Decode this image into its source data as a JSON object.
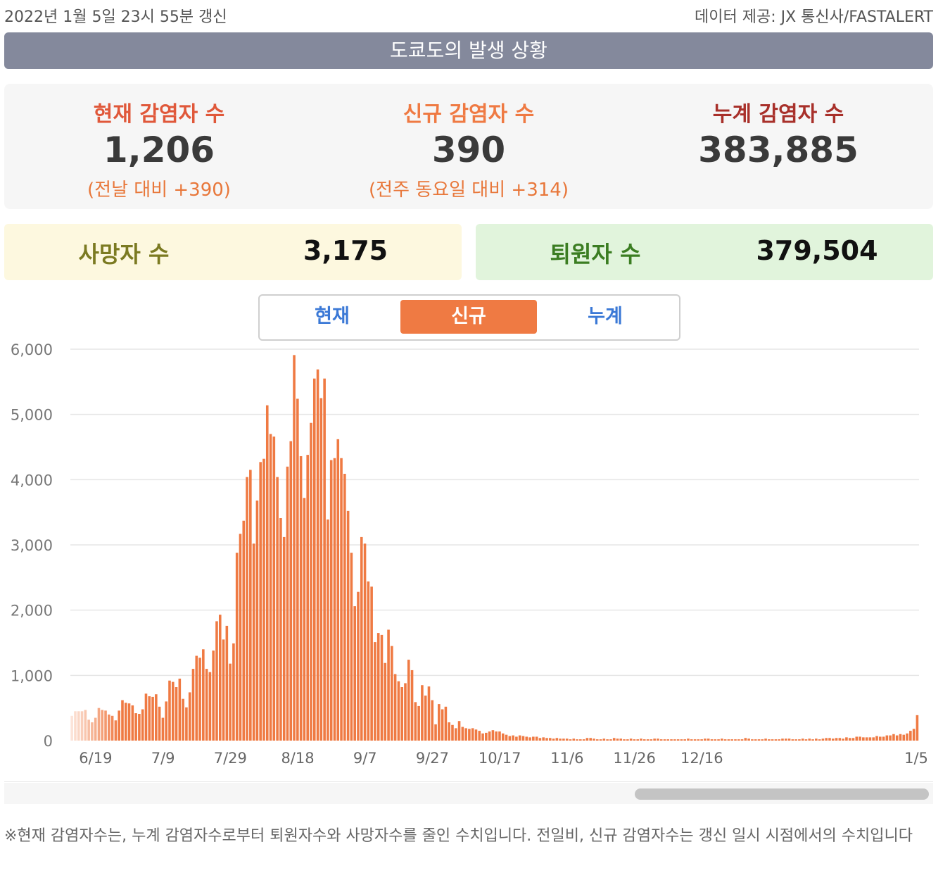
{
  "header": {
    "updated": "2022년 1월 5일 23시 55분 갱신",
    "source": "데이터 제공: JX 통신사/FASTALERT",
    "title": "도쿄도의 발생 상황"
  },
  "stats": {
    "current": {
      "label": "현재 감염자 수",
      "value": "1,206",
      "sub": "(전날 대비 +390)"
    },
    "new": {
      "label": "신규 감염자 수",
      "value": "390",
      "sub": "(전주 동요일 대비 +314)"
    },
    "cumulative": {
      "label": "누계 감염자 수",
      "value": "383,885"
    }
  },
  "deaths": {
    "label": "사망자 수",
    "value": "3,175"
  },
  "recovered": {
    "label": "퇴원자 수",
    "value": "379,504"
  },
  "tabs": [
    {
      "label": "현재"
    },
    {
      "label": "신규"
    },
    {
      "label": "누계"
    }
  ],
  "footnote": "※현재 감염자수는, 누계 감염자수로부터 퇴원자수와 사망자수를 줄인 수치입니다. 전일비, 신규 감염자수는 갱신 일시 시점에서의 수치입니다",
  "colors": {
    "bar": "#ef7a43",
    "current_label": "#e0583a",
    "new_label": "#ef7a43",
    "cumulative_label": "#a8302a",
    "deaths_bg": "#fdf8df",
    "deaths_label": "#7b7a21",
    "recovered_bg": "#e1f4dc",
    "recovered_label": "#3b7d22"
  },
  "chart_data": {
    "type": "bar",
    "title": "신규 감염자 수",
    "ylim": [
      0,
      6000
    ],
    "yticks": [
      "0",
      "1,000",
      "2,000",
      "3,000",
      "4,000",
      "5,000",
      "6,000"
    ],
    "xticks": [
      "6/19",
      "7/9",
      "7/29",
      "8/18",
      "9/7",
      "9/27",
      "10/17",
      "11/6",
      "11/26",
      "12/16",
      "1/5"
    ],
    "grid": true,
    "start_date": "6/12",
    "end_date": "1/5",
    "values": [
      380,
      450,
      450,
      450,
      470,
      320,
      280,
      350,
      500,
      470,
      460,
      400,
      380,
      310,
      460,
      620,
      580,
      570,
      540,
      420,
      410,
      480,
      720,
      680,
      670,
      710,
      520,
      350,
      600,
      920,
      900,
      820,
      950,
      640,
      510,
      740,
      1100,
      1300,
      1270,
      1400,
      1100,
      1050,
      1380,
      1830,
      1930,
      1550,
      1760,
      1180,
      1490,
      2880,
      3170,
      3370,
      4040,
      4150,
      3020,
      3680,
      4270,
      4320,
      5140,
      4700,
      4660,
      4040,
      3410,
      3120,
      4200,
      4590,
      5910,
      5240,
      4360,
      3720,
      4380,
      4870,
      5550,
      5690,
      5250,
      5550,
      3390,
      4300,
      4330,
      4620,
      4330,
      4090,
      3520,
      2880,
      2060,
      2280,
      3120,
      3020,
      2440,
      2360,
      1510,
      1650,
      1620,
      1190,
      1700,
      1450,
      1020,
      910,
      820,
      880,
      1240,
      1080,
      590,
      530,
      850,
      690,
      830,
      620,
      250,
      560,
      480,
      520,
      280,
      240,
      190,
      300,
      210,
      190,
      180,
      190,
      170,
      150,
      110,
      120,
      140,
      160,
      140,
      140,
      110,
      90,
      70,
      80,
      60,
      80,
      70,
      60,
      50,
      60,
      60,
      40,
      50,
      40,
      40,
      30,
      40,
      30,
      30,
      30,
      20,
      30,
      20,
      20,
      20,
      40,
      40,
      30,
      20,
      20,
      30,
      20,
      20,
      40,
      30,
      30,
      20,
      20,
      30,
      20,
      20,
      30,
      20,
      20,
      20,
      30,
      30,
      20,
      20,
      20,
      20,
      20,
      20,
      20,
      20,
      30,
      20,
      20,
      20,
      20,
      30,
      30,
      20,
      20,
      20,
      30,
      20,
      20,
      20,
      20,
      20,
      20,
      40,
      30,
      20,
      20,
      20,
      20,
      30,
      20,
      20,
      20,
      20,
      30,
      30,
      30,
      20,
      20,
      20,
      30,
      20,
      30,
      20,
      30,
      20,
      30,
      40,
      40,
      30,
      40,
      40,
      30,
      50,
      40,
      40,
      60,
      60,
      50,
      50,
      50,
      50,
      70,
      60,
      60,
      80,
      80,
      100,
      80,
      100,
      90,
      110,
      150,
      180,
      390
    ]
  }
}
